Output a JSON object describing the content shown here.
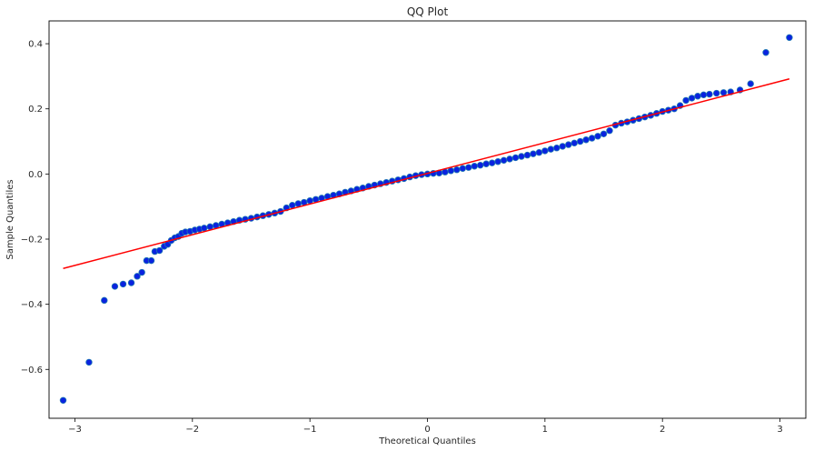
{
  "chart_data": {
    "type": "scatter",
    "title": "QQ Plot",
    "xlabel": "Theoretical Quantiles",
    "ylabel": "Sample Quantiles",
    "xlim": [
      -3.22,
      3.22
    ],
    "ylim": [
      -0.75,
      0.47
    ],
    "x_ticks": [
      -3,
      -2,
      -1,
      0,
      1,
      2,
      3
    ],
    "x_tick_labels": [
      "−3",
      "−2",
      "−1",
      "0",
      "1",
      "2",
      "3"
    ],
    "y_ticks": [
      -0.6,
      -0.4,
      -0.2,
      0.0,
      0.2,
      0.4
    ],
    "y_tick_labels": [
      "−0.6",
      "−0.4",
      "−0.2",
      "0.0",
      "0.2",
      "0.4"
    ],
    "grid": false,
    "legend": "none",
    "marker_color": "#0a22e0",
    "marker_edge_color": "#1f77b4",
    "line_color": "#ff0000",
    "reference_line": {
      "x": [
        -3.1,
        3.08
      ],
      "y": [
        -0.29,
        0.292
      ]
    },
    "points": [
      [
        -3.1,
        -0.695
      ],
      [
        -2.88,
        -0.578
      ],
      [
        -2.75,
        -0.388
      ],
      [
        -2.66,
        -0.345
      ],
      [
        -2.59,
        -0.338
      ],
      [
        -2.52,
        -0.334
      ],
      [
        -2.47,
        -0.314
      ],
      [
        -2.43,
        -0.302
      ],
      [
        -2.39,
        -0.266
      ],
      [
        -2.35,
        -0.266
      ],
      [
        -2.32,
        -0.238
      ],
      [
        -2.28,
        -0.235
      ],
      [
        -2.24,
        -0.222
      ],
      [
        -2.21,
        -0.216
      ],
      [
        -2.18,
        -0.204
      ],
      [
        -2.15,
        -0.196
      ],
      [
        -2.12,
        -0.192
      ],
      [
        -2.09,
        -0.182
      ],
      [
        -2.06,
        -0.178
      ],
      [
        -2.02,
        -0.176
      ],
      [
        -1.98,
        -0.172
      ],
      [
        -1.94,
        -0.169
      ],
      [
        -1.9,
        -0.166
      ],
      [
        -1.85,
        -0.162
      ],
      [
        -1.8,
        -0.158
      ],
      [
        -1.75,
        -0.154
      ],
      [
        -1.7,
        -0.15
      ],
      [
        -1.65,
        -0.146
      ],
      [
        -1.6,
        -0.142
      ],
      [
        -1.55,
        -0.139
      ],
      [
        -1.5,
        -0.136
      ],
      [
        -1.45,
        -0.132
      ],
      [
        -1.4,
        -0.128
      ],
      [
        -1.35,
        -0.124
      ],
      [
        -1.3,
        -0.12
      ],
      [
        -1.25,
        -0.115
      ],
      [
        -1.2,
        -0.104
      ],
      [
        -1.15,
        -0.096
      ],
      [
        -1.1,
        -0.091
      ],
      [
        -1.05,
        -0.087
      ],
      [
        -1.0,
        -0.082
      ],
      [
        -0.95,
        -0.078
      ],
      [
        -0.9,
        -0.074
      ],
      [
        -0.85,
        -0.069
      ],
      [
        -0.8,
        -0.065
      ],
      [
        -0.75,
        -0.061
      ],
      [
        -0.7,
        -0.056
      ],
      [
        -0.65,
        -0.052
      ],
      [
        -0.6,
        -0.047
      ],
      [
        -0.55,
        -0.043
      ],
      [
        -0.5,
        -0.038
      ],
      [
        -0.45,
        -0.034
      ],
      [
        -0.4,
        -0.03
      ],
      [
        -0.35,
        -0.026
      ],
      [
        -0.3,
        -0.022
      ],
      [
        -0.25,
        -0.018
      ],
      [
        -0.2,
        -0.014
      ],
      [
        -0.15,
        -0.009
      ],
      [
        -0.1,
        -0.005
      ],
      [
        -0.05,
        -0.002
      ],
      [
        0.0,
        0.0
      ],
      [
        0.05,
        0.002
      ],
      [
        0.1,
        0.003
      ],
      [
        0.15,
        0.006
      ],
      [
        0.2,
        0.01
      ],
      [
        0.25,
        0.013
      ],
      [
        0.3,
        0.017
      ],
      [
        0.35,
        0.02
      ],
      [
        0.4,
        0.024
      ],
      [
        0.45,
        0.027
      ],
      [
        0.5,
        0.031
      ],
      [
        0.55,
        0.034
      ],
      [
        0.6,
        0.038
      ],
      [
        0.65,
        0.042
      ],
      [
        0.7,
        0.046
      ],
      [
        0.75,
        0.05
      ],
      [
        0.8,
        0.054
      ],
      [
        0.85,
        0.058
      ],
      [
        0.9,
        0.062
      ],
      [
        0.95,
        0.066
      ],
      [
        1.0,
        0.071
      ],
      [
        1.05,
        0.076
      ],
      [
        1.1,
        0.08
      ],
      [
        1.15,
        0.085
      ],
      [
        1.2,
        0.09
      ],
      [
        1.25,
        0.095
      ],
      [
        1.3,
        0.1
      ],
      [
        1.35,
        0.105
      ],
      [
        1.4,
        0.11
      ],
      [
        1.45,
        0.116
      ],
      [
        1.5,
        0.123
      ],
      [
        1.55,
        0.133
      ],
      [
        1.6,
        0.15
      ],
      [
        1.65,
        0.156
      ],
      [
        1.7,
        0.16
      ],
      [
        1.75,
        0.165
      ],
      [
        1.8,
        0.17
      ],
      [
        1.85,
        0.175
      ],
      [
        1.9,
        0.18
      ],
      [
        1.95,
        0.186
      ],
      [
        2.0,
        0.192
      ],
      [
        2.05,
        0.196
      ],
      [
        2.1,
        0.2
      ],
      [
        2.15,
        0.21
      ],
      [
        2.2,
        0.226
      ],
      [
        2.25,
        0.233
      ],
      [
        2.3,
        0.239
      ],
      [
        2.35,
        0.243
      ],
      [
        2.4,
        0.245
      ],
      [
        2.46,
        0.248
      ],
      [
        2.52,
        0.25
      ],
      [
        2.58,
        0.252
      ],
      [
        2.66,
        0.258
      ],
      [
        2.75,
        0.277
      ],
      [
        2.88,
        0.373
      ],
      [
        3.08,
        0.419
      ]
    ]
  }
}
